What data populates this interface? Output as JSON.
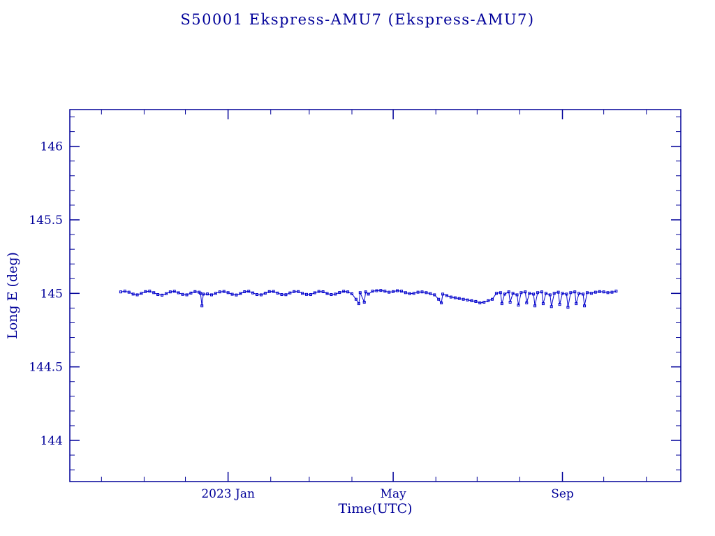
{
  "title": "S50001 Ekspress-AMU7  (Ekspress-AMU7)",
  "colors": {
    "axis": "#000099",
    "text": "#000099",
    "data": "#0000cc",
    "background": "#ffffff"
  },
  "chart_data": {
    "type": "line",
    "title": "S50001 Ekspress-AMU7  (Ekspress-AMU7)",
    "xlabel": "Time(UTC)",
    "ylabel": "Long E (deg)",
    "x_unit": "days since 2023-01-01",
    "xlim": [
      -115,
      329
    ],
    "ylim": [
      143.72,
      146.25
    ],
    "grid": false,
    "legend": "none",
    "marker": "open-square",
    "x_ticks_major": [
      {
        "pos": 0,
        "label": "2023 Jan"
      },
      {
        "pos": 120,
        "label": "May"
      },
      {
        "pos": 243,
        "label": "Sep"
      }
    ],
    "x_ticks_minor": [
      -92,
      -61,
      -31,
      31,
      59,
      90,
      151,
      181,
      212,
      273,
      304
    ],
    "y_ticks_major": [
      {
        "value": 144,
        "label": "144"
      },
      {
        "value": 144.5,
        "label": "144.5"
      },
      {
        "value": 145,
        "label": "145"
      },
      {
        "value": 145.5,
        "label": "145.5"
      },
      {
        "value": 146,
        "label": "146"
      }
    ],
    "y_minor_step": 0.1,
    "points": [
      [
        -78,
        145.01
      ],
      [
        -75,
        145.015
      ],
      [
        -72,
        145.008
      ],
      [
        -69,
        144.995
      ],
      [
        -66,
        144.99
      ],
      [
        -63,
        145.0
      ],
      [
        -60,
        145.012
      ],
      [
        -57,
        145.015
      ],
      [
        -54,
        145.005
      ],
      [
        -51,
        144.992
      ],
      [
        -48,
        144.988
      ],
      [
        -45,
        144.998
      ],
      [
        -42,
        145.01
      ],
      [
        -39,
        145.014
      ],
      [
        -36,
        145.004
      ],
      [
        -33,
        144.993
      ],
      [
        -30,
        144.99
      ],
      [
        -27,
        145.002
      ],
      [
        -24,
        145.012
      ],
      [
        -21,
        145.008
      ],
      [
        -20,
        145.0
      ],
      [
        -19,
        144.915
      ],
      [
        -18,
        144.995
      ],
      [
        -15,
        144.996
      ],
      [
        -12,
        144.99
      ],
      [
        -9,
        145.0
      ],
      [
        -6,
        145.01
      ],
      [
        -3,
        145.013
      ],
      [
        0,
        145.005
      ],
      [
        3,
        144.994
      ],
      [
        6,
        144.989
      ],
      [
        9,
        144.999
      ],
      [
        12,
        145.011
      ],
      [
        15,
        145.014
      ],
      [
        18,
        145.003
      ],
      [
        21,
        144.992
      ],
      [
        24,
        144.99
      ],
      [
        27,
        145.001
      ],
      [
        30,
        145.012
      ],
      [
        33,
        145.013
      ],
      [
        36,
        145.002
      ],
      [
        39,
        144.992
      ],
      [
        42,
        144.991
      ],
      [
        45,
        145.003
      ],
      [
        48,
        145.012
      ],
      [
        51,
        145.012
      ],
      [
        54,
        145.0
      ],
      [
        57,
        144.993
      ],
      [
        60,
        144.992
      ],
      [
        63,
        145.004
      ],
      [
        66,
        145.013
      ],
      [
        69,
        145.011
      ],
      [
        72,
        144.999
      ],
      [
        75,
        144.992
      ],
      [
        78,
        144.995
      ],
      [
        81,
        145.006
      ],
      [
        84,
        145.014
      ],
      [
        87,
        145.01
      ],
      [
        90,
        144.997
      ],
      [
        93,
        144.96
      ],
      [
        95,
        144.93
      ],
      [
        96,
        145.005
      ],
      [
        99,
        144.94
      ],
      [
        100,
        145.01
      ],
      [
        102,
        144.995
      ],
      [
        105,
        145.015
      ],
      [
        108,
        145.018
      ],
      [
        111,
        145.02
      ],
      [
        114,
        145.015
      ],
      [
        117,
        145.008
      ],
      [
        120,
        145.012
      ],
      [
        123,
        145.018
      ],
      [
        126,
        145.015
      ],
      [
        129,
        145.005
      ],
      [
        132,
        144.998
      ],
      [
        135,
        145.0
      ],
      [
        138,
        145.008
      ],
      [
        141,
        145.01
      ],
      [
        144,
        145.005
      ],
      [
        147,
        144.998
      ],
      [
        150,
        144.99
      ],
      [
        153,
        144.96
      ],
      [
        155,
        144.935
      ],
      [
        156,
        144.995
      ],
      [
        159,
        144.985
      ],
      [
        162,
        144.975
      ],
      [
        165,
        144.97
      ],
      [
        168,
        144.965
      ],
      [
        171,
        144.96
      ],
      [
        174,
        144.955
      ],
      [
        177,
        144.95
      ],
      [
        180,
        144.945
      ],
      [
        183,
        144.935
      ],
      [
        186,
        144.94
      ],
      [
        189,
        144.95
      ],
      [
        192,
        144.96
      ],
      [
        195,
        145.0
      ],
      [
        198,
        145.005
      ],
      [
        199,
        144.93
      ],
      [
        201,
        144.995
      ],
      [
        204,
        145.01
      ],
      [
        205,
        144.94
      ],
      [
        207,
        145.0
      ],
      [
        210,
        144.99
      ],
      [
        211,
        144.92
      ],
      [
        213,
        145.005
      ],
      [
        216,
        145.01
      ],
      [
        217,
        144.935
      ],
      [
        219,
        145.0
      ],
      [
        222,
        144.995
      ],
      [
        223,
        144.915
      ],
      [
        225,
        145.005
      ],
      [
        228,
        145.01
      ],
      [
        229,
        144.93
      ],
      [
        231,
        145.0
      ],
      [
        234,
        144.99
      ],
      [
        235,
        144.91
      ],
      [
        237,
        145.0
      ],
      [
        240,
        145.008
      ],
      [
        241,
        144.925
      ],
      [
        243,
        145.0
      ],
      [
        246,
        144.995
      ],
      [
        247,
        144.905
      ],
      [
        249,
        145.005
      ],
      [
        252,
        145.01
      ],
      [
        253,
        144.93
      ],
      [
        255,
        145.0
      ],
      [
        258,
        144.995
      ],
      [
        259,
        144.915
      ],
      [
        261,
        145.005
      ],
      [
        264,
        145.0
      ],
      [
        267,
        145.008
      ],
      [
        270,
        145.012
      ],
      [
        273,
        145.01
      ],
      [
        276,
        145.005
      ],
      [
        279,
        145.008
      ],
      [
        282,
        145.015
      ]
    ]
  }
}
